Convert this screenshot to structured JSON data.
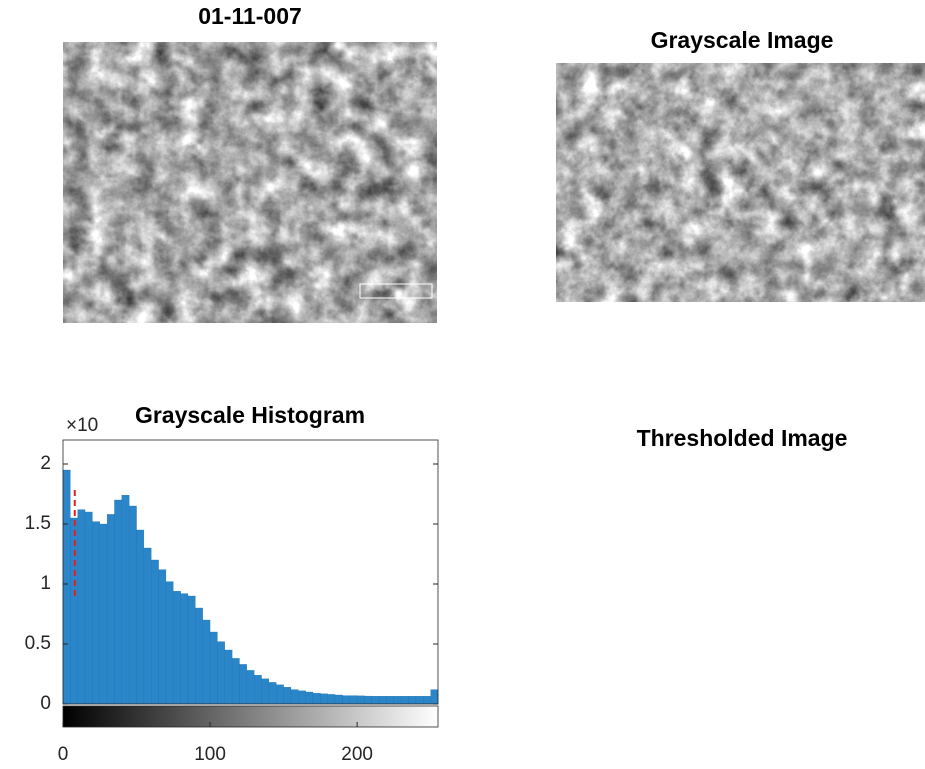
{
  "chart_data": [
    {
      "type": "image",
      "title": "01-11-007"
    },
    {
      "type": "image",
      "title": "Grayscale Image"
    },
    {
      "type": "histogram",
      "title": "Grayscale Histogram",
      "y_exponent_label": "×10",
      "color": "#2a86c8",
      "bins": [
        0,
        5,
        10,
        15,
        20,
        25,
        30,
        35,
        40,
        45,
        50,
        55,
        60,
        65,
        70,
        75,
        80,
        85,
        90,
        95,
        100,
        105,
        110,
        115,
        120,
        125,
        130,
        135,
        140,
        145,
        150,
        155,
        160,
        165,
        170,
        175,
        180,
        185,
        190,
        195,
        200,
        205,
        210,
        215,
        220,
        225,
        230,
        235,
        240,
        245,
        250,
        255
      ],
      "counts": [
        1.95,
        1.55,
        1.62,
        1.6,
        1.52,
        1.5,
        1.58,
        1.7,
        1.74,
        1.65,
        1.45,
        1.3,
        1.2,
        1.12,
        1.02,
        0.94,
        0.92,
        0.9,
        0.8,
        0.7,
        0.6,
        0.52,
        0.45,
        0.38,
        0.33,
        0.28,
        0.24,
        0.21,
        0.18,
        0.16,
        0.14,
        0.12,
        0.11,
        0.1,
        0.09,
        0.085,
        0.08,
        0.075,
        0.07,
        0.07,
        0.068,
        0.066,
        0.065,
        0.065,
        0.065,
        0.065,
        0.065,
        0.065,
        0.065,
        0.065,
        0.12
      ],
      "threshold": {
        "x": 8,
        "y": [
          0.9,
          1.8
        ],
        "color": "#e02020"
      },
      "xlim": [
        0,
        255
      ],
      "ylim": [
        0,
        2.2
      ],
      "xticks": [
        0,
        100,
        200
      ],
      "yticks": [
        0,
        0.5,
        1,
        1.5,
        2
      ]
    },
    {
      "type": "image",
      "title": "Thresholded Image"
    }
  ]
}
